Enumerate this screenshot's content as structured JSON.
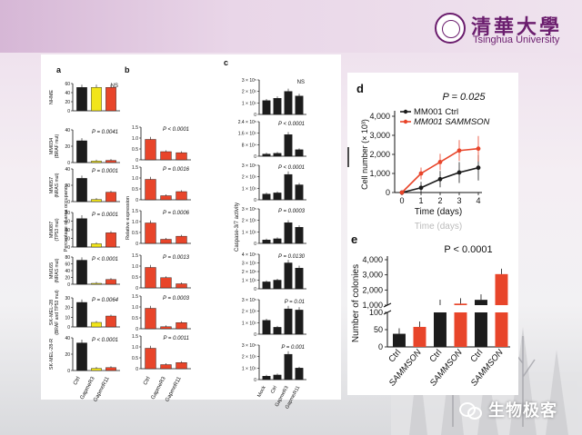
{
  "slide": {
    "logo": {
      "cn": "清華大學",
      "en": "Tsinghua University"
    },
    "watermark": "生物极客"
  },
  "colors": {
    "black_bar": "#1c1c1c",
    "yellow_bar": "#f2e51a",
    "red_bar": "#e8452a",
    "red_line": "#e8452a",
    "black_line": "#1c1c1c"
  },
  "panels": {
    "a": {
      "label": "a",
      "ylabel": "Percentage of area occupancy",
      "xlabels": [
        "Ctrl",
        "GapmeR3",
        "GapmeR11"
      ],
      "rows": [
        {
          "name": "NHME",
          "sub": "",
          "stat": "NS",
          "ticks": [
            "0",
            "20",
            "40",
            "60"
          ],
          "max": 70,
          "values": [
            60,
            60,
            60
          ]
        },
        {
          "name": "MM034",
          "sub": "(BRAF mut)",
          "stat": "P = 0.0041",
          "ticks": [
            "0",
            "20",
            "40"
          ],
          "max": 45,
          "values": [
            30,
            2,
            3
          ]
        },
        {
          "name": "MM057",
          "sub": "(NRAS mut)",
          "stat": "P = 0.0001",
          "ticks": [
            "0",
            "20",
            "40"
          ],
          "max": 45,
          "values": [
            32,
            3,
            13
          ]
        },
        {
          "name": "MM087",
          "sub": "(TP53 mut)",
          "stat": "P = 0.0001",
          "ticks": [
            "0",
            "20",
            "40",
            "60",
            "80"
          ],
          "max": 85,
          "values": [
            70,
            8,
            35
          ]
        },
        {
          "name": "MM165",
          "sub": "(NRAS mut)",
          "stat": "P < 0.0001",
          "ticks": [
            "0",
            "20",
            "40",
            "60",
            "80"
          ],
          "max": 85,
          "values": [
            75,
            2,
            15
          ]
        },
        {
          "name": "SK-MEL-28",
          "sub": "(BRAF and TP53 mut)",
          "stat": "P = 0.0064",
          "ticks": [
            "0",
            "10",
            "20",
            "30"
          ],
          "max": 32,
          "values": [
            27,
            5,
            12
          ]
        },
        {
          "name": "SK-MEL-28-R",
          "sub": "",
          "stat": "P < 0.0001",
          "ticks": [
            "0",
            "20",
            "40"
          ],
          "max": 45,
          "values": [
            38,
            3,
            4
          ]
        }
      ]
    },
    "b": {
      "label": "b",
      "ylabel": "Relative expression",
      "xlabels": [
        "Ctrl",
        "GapmeR3",
        "GapmeR11"
      ],
      "rows": [
        {
          "stat": "P < 0.0001",
          "ticks": [
            "0",
            "0.5",
            "1.0",
            "1.5"
          ],
          "max": 1.6,
          "values": [
            1.0,
            0.4,
            0.35
          ]
        },
        {
          "stat": "P = 0.0016",
          "ticks": [
            "0",
            "0.5",
            "1.0",
            "1.5"
          ],
          "max": 1.6,
          "values": [
            1.0,
            0.2,
            0.4
          ]
        },
        {
          "stat": "P = 0.0006",
          "ticks": [
            "0",
            "0.5",
            "1.0",
            "1.5"
          ],
          "max": 1.6,
          "values": [
            1.0,
            0.2,
            0.35
          ]
        },
        {
          "stat": "P = 0.0013",
          "ticks": [
            "0",
            "0.5",
            "1.0",
            "1.5"
          ],
          "max": 1.6,
          "values": [
            1.0,
            0.5,
            0.2
          ]
        },
        {
          "stat": "P = 0.0003",
          "ticks": [
            "0",
            "0.5",
            "1.0",
            "1.5"
          ],
          "max": 1.6,
          "values": [
            1.0,
            0.1,
            0.3
          ]
        },
        {
          "stat": "P = 0.0011",
          "ticks": [
            "0",
            "0.5",
            "1.0",
            "1.5"
          ],
          "max": 1.6,
          "values": [
            1.0,
            0.2,
            0.3
          ]
        }
      ]
    },
    "c": {
      "label": "c",
      "ylabel": "Caspase-3/7 activity",
      "xlabels": [
        "Mock",
        "Ctrl",
        "GapmeR3",
        "GapmeR11"
      ],
      "rows": [
        {
          "stat": "NS",
          "ticks": [
            "0",
            "1 × 10⁵",
            "2 × 10⁵",
            "3 × 10⁵"
          ],
          "max": 3,
          "values": [
            1.2,
            1.4,
            2.0,
            1.6
          ]
        },
        {
          "stat": "P < 0.0001",
          "ticks": [
            "0",
            "8 × 10⁴",
            "1.6 × 10⁵",
            "2.4 × 10⁵"
          ],
          "max": 2.4,
          "values": [
            0.15,
            0.2,
            1.5,
            0.45
          ]
        },
        {
          "stat": "P < 0.0001",
          "ticks": [
            "0",
            "1 × 10⁵",
            "2 × 10⁵",
            "3 × 10⁵"
          ],
          "max": 3,
          "values": [
            0.5,
            0.6,
            2.2,
            1.3
          ]
        },
        {
          "stat": "P = 0.0003",
          "ticks": [
            "0",
            "1 × 10⁵",
            "2 × 10⁵",
            "3 × 10⁵"
          ],
          "max": 3,
          "values": [
            0.3,
            0.4,
            1.8,
            1.4
          ]
        },
        {
          "stat": "P = 0.0130",
          "ticks": [
            "0",
            "1 × 10⁵",
            "2 × 10⁵",
            "3 × 10⁵",
            "4 × 10⁵"
          ],
          "max": 4,
          "values": [
            0.8,
            1.0,
            3.0,
            2.4
          ]
        },
        {
          "stat": "P = 0.01",
          "ticks": [
            "0",
            "1 × 10⁵",
            "2 × 10⁵",
            "3 × 10⁵"
          ],
          "max": 3,
          "values": [
            1.2,
            0.6,
            2.2,
            2.1
          ]
        },
        {
          "stat": "P = 0.001",
          "ticks": [
            "0",
            "1 × 10⁵",
            "2 × 10⁵",
            "3 × 10⁵"
          ],
          "max": 3,
          "values": [
            0.3,
            0.4,
            2.2,
            1.0
          ]
        }
      ]
    }
  },
  "chart_data": [
    {
      "type": "line",
      "panel_label": "d",
      "stat": "P = 0.025",
      "x": [
        0,
        1,
        2,
        3,
        4
      ],
      "xlabel": "Time (days)",
      "ylabel": "Cell number (× 10³)",
      "xticks": [
        "0",
        "1",
        "2",
        "3",
        "4"
      ],
      "yticks": [
        "0",
        "1,000",
        "2,000",
        "3,000",
        "4,000"
      ],
      "ylim": [
        0,
        4000
      ],
      "series": [
        {
          "name": "MM001 Ctrl",
          "values": [
            0,
            250,
            700,
            1050,
            1300
          ]
        },
        {
          "name": "MM001 SAMMSON",
          "values": [
            0,
            1000,
            1600,
            2200,
            2300
          ]
        }
      ],
      "below_axis": "Time (days)"
    },
    {
      "type": "bar",
      "panel_label": "e",
      "stat": "P < 0.0001",
      "ylabel": "Number of colonies",
      "yticks_upper": [
        "1,000",
        "2,000",
        "3,000",
        "4,000"
      ],
      "yticks_lower": [
        "0",
        "50",
        "100"
      ],
      "categories": [
        "Ctrl",
        "SAMMSON",
        "Ctrl",
        "SAMMSON",
        "Ctrl",
        "SAMMSON"
      ],
      "values": [
        38,
        58,
        1000,
        1100,
        1350,
        3050
      ]
    }
  ]
}
